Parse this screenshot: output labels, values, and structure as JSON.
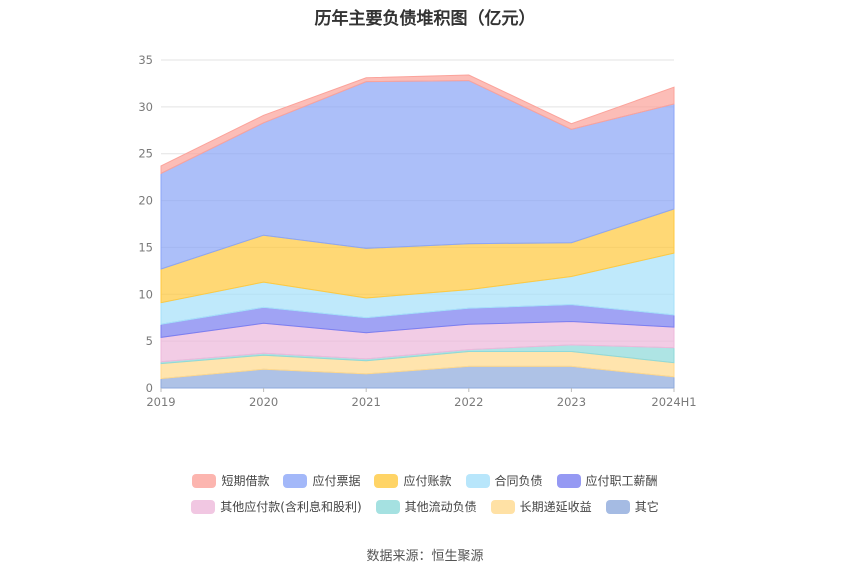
{
  "title": "历年主要负债堆积图（亿元）",
  "source": "数据来源：恒生聚源",
  "chart_data": {
    "type": "area",
    "stacked": true,
    "title": "历年主要负债堆积图（亿元）",
    "categories": [
      "2019",
      "2020",
      "2021",
      "2022",
      "2023",
      "2024H1"
    ],
    "ylim": [
      0,
      35
    ],
    "yticks": [
      0,
      5,
      10,
      15,
      20,
      25,
      30,
      35
    ],
    "grid": true,
    "legend_position": "bottom",
    "series": [
      {
        "name": "其它",
        "color": "#8FAADC",
        "values": [
          1.0,
          2.0,
          1.5,
          2.3,
          2.3,
          1.2
        ]
      },
      {
        "name": "长期递延收益",
        "color": "#FFD98E",
        "values": [
          1.6,
          1.5,
          1.4,
          1.6,
          1.6,
          1.5
        ]
      },
      {
        "name": "其他流动负债",
        "color": "#8FD9D9",
        "values": [
          0.2,
          0.2,
          0.2,
          0.2,
          0.7,
          1.6
        ]
      },
      {
        "name": "其他应付款(含利息和股利)",
        "color": "#EDB9DB",
        "values": [
          2.6,
          3.2,
          2.8,
          2.7,
          2.5,
          2.2
        ]
      },
      {
        "name": "应付职工薪酬",
        "color": "#7B7FF0",
        "values": [
          1.4,
          1.7,
          1.6,
          1.7,
          1.8,
          1.3
        ]
      },
      {
        "name": "合同负债",
        "color": "#A6E0FA",
        "values": [
          2.3,
          2.7,
          2.1,
          2.0,
          3.0,
          6.6
        ]
      },
      {
        "name": "应付账款",
        "color": "#FFC940",
        "values": [
          3.6,
          5.0,
          5.3,
          4.9,
          3.6,
          4.7
        ]
      },
      {
        "name": "应付票据",
        "color": "#8CA6F7",
        "values": [
          10.2,
          12.0,
          17.8,
          17.4,
          12.1,
          11.2
        ]
      },
      {
        "name": "短期借款",
        "color": "#FBA39B",
        "values": [
          0.8,
          0.8,
          0.4,
          0.6,
          0.6,
          1.8
        ]
      }
    ],
    "legend_rows": [
      [
        "短期借款",
        "应付票据",
        "应付账款",
        "合同负债",
        "应付职工薪酬"
      ],
      [
        "其他应付款(含利息和股利)",
        "其他流动负债",
        "长期递延收益",
        "其它"
      ]
    ]
  }
}
